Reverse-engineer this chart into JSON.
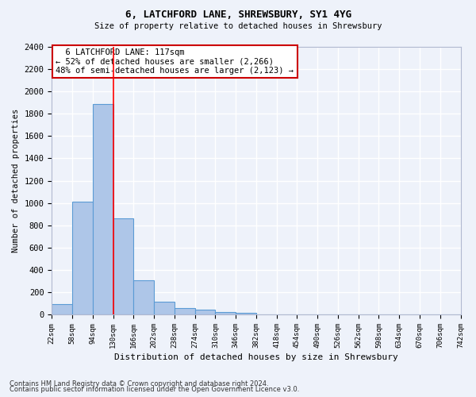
{
  "title_line1": "6, LATCHFORD LANE, SHREWSBURY, SY1 4YG",
  "title_line2": "Size of property relative to detached houses in Shrewsbury",
  "xlabel": "Distribution of detached houses by size in Shrewsbury",
  "ylabel": "Number of detached properties",
  "bar_values": [
    90,
    1010,
    1890,
    860,
    310,
    115,
    55,
    45,
    25,
    18,
    0,
    0,
    0,
    0,
    0,
    0,
    0,
    0,
    0,
    0
  ],
  "bin_labels": [
    "22sqm",
    "58sqm",
    "94sqm",
    "130sqm",
    "166sqm",
    "202sqm",
    "238sqm",
    "274sqm",
    "310sqm",
    "346sqm",
    "382sqm",
    "418sqm",
    "454sqm",
    "490sqm",
    "526sqm",
    "562sqm",
    "598sqm",
    "634sqm",
    "670sqm",
    "706sqm",
    "742sqm"
  ],
  "bar_color": "#aec6e8",
  "bar_edge_color": "#5b9bd5",
  "background_color": "#eef2fa",
  "grid_color": "#ffffff",
  "annotation_line1": "  6 LATCHFORD LANE: 117sqm",
  "annotation_line2": "← 52% of detached houses are smaller (2,266)",
  "annotation_line3": "48% of semi-detached houses are larger (2,123) →",
  "property_line_x": 3,
  "ylim": [
    0,
    2400
  ],
  "yticks": [
    0,
    200,
    400,
    600,
    800,
    1000,
    1200,
    1400,
    1600,
    1800,
    2000,
    2200,
    2400
  ],
  "footnote_line1": "Contains HM Land Registry data © Crown copyright and database right 2024.",
  "footnote_line2": "Contains public sector information licensed under the Open Government Licence v3.0."
}
